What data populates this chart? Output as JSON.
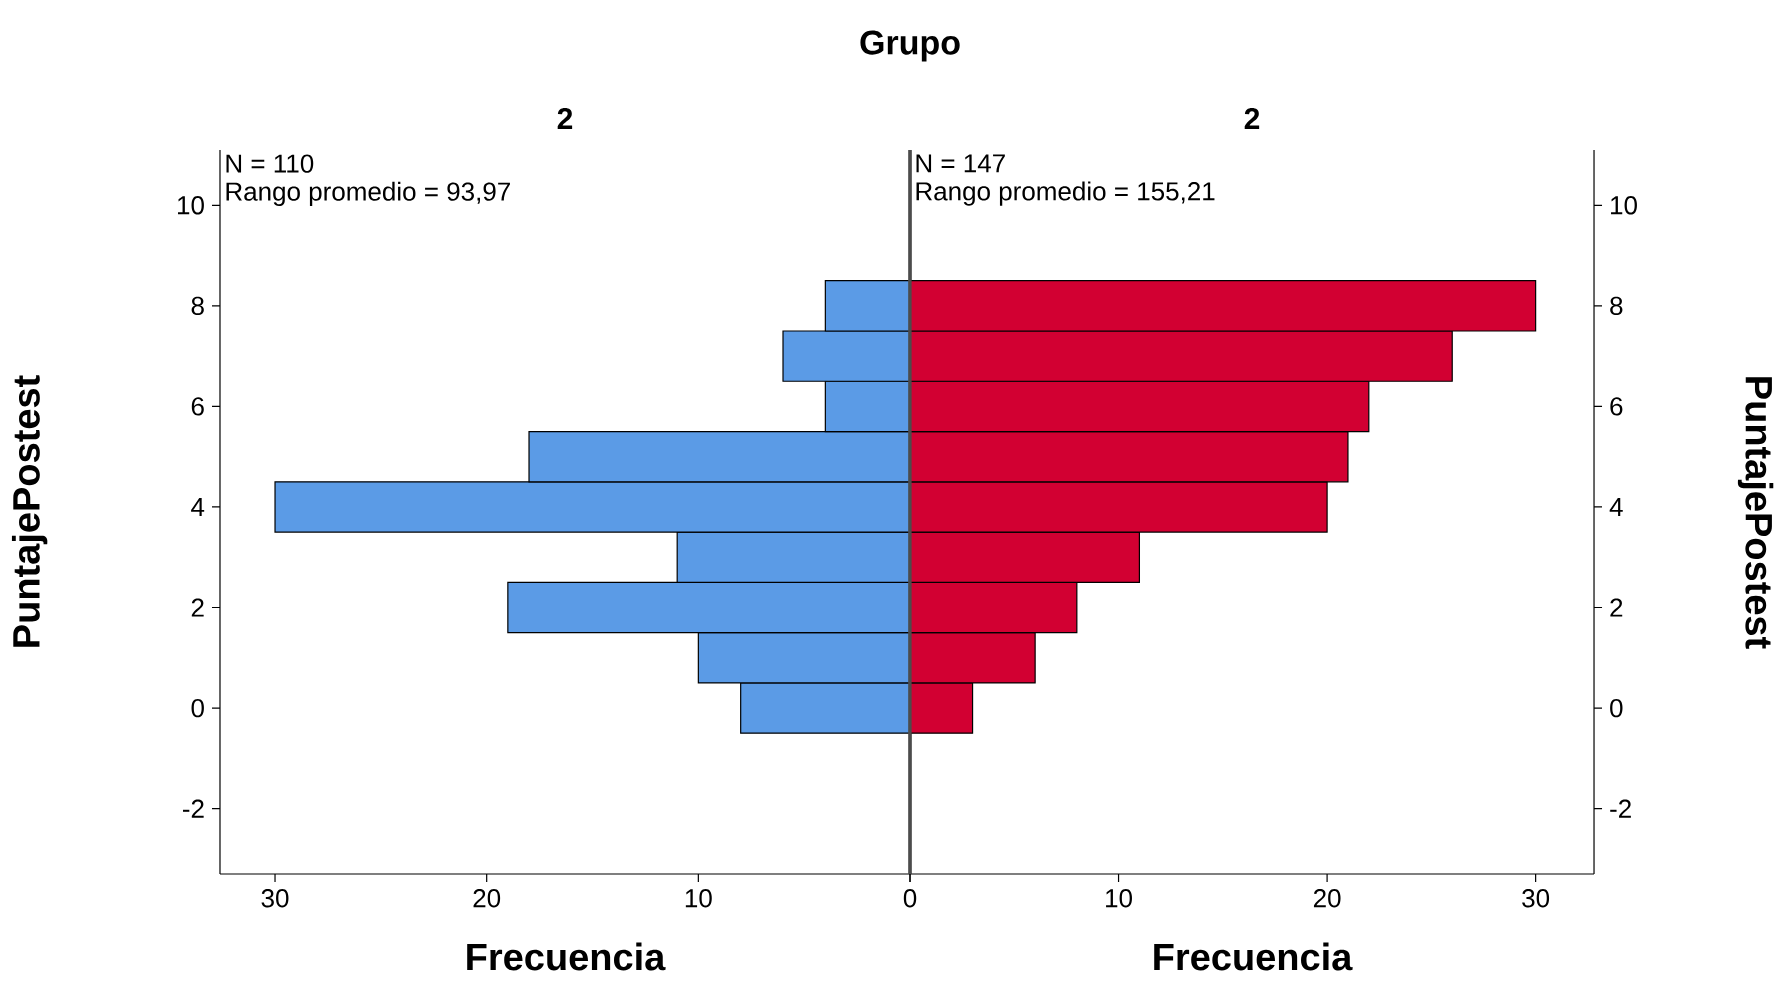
{
  "chart_data": [
    {
      "type": "histogram",
      "orientation": "horizontal",
      "title": "Grupo",
      "subtitle": "2",
      "xlabel": "Frecuencia",
      "ylabel": "PuntajePostest",
      "annotations": [
        "N = 110",
        "Rango promedio = 93,97"
      ],
      "bins": [
        -0.5,
        0.5,
        1.5,
        2.5,
        3.5,
        4.5,
        5.5,
        6.5,
        7.5,
        8.5
      ],
      "values": [
        8,
        10,
        19,
        11,
        30,
        18,
        4,
        6,
        4
      ],
      "color": "#5b9be6",
      "xlim": [
        32.6,
        0
      ],
      "xticks": [
        {
          "value": 0,
          "label": null
        },
        10,
        20,
        30
      ],
      "ylim": [
        -3.3,
        11.1
      ],
      "yticks": [
        -2,
        0,
        2,
        4,
        6,
        8,
        10
      ]
    },
    {
      "type": "histogram",
      "orientation": "horizontal",
      "subtitle": "2",
      "xlabel": "Frecuencia",
      "ylabel": "PuntajePostest",
      "annotations": [
        "N = 147",
        "Rango promedio = 155,21"
      ],
      "bins": [
        -0.5,
        0.5,
        1.5,
        2.5,
        3.5,
        4.5,
        5.5,
        6.5,
        7.5,
        8.5
      ],
      "values": [
        3,
        6,
        8,
        11,
        20,
        21,
        22,
        26,
        30
      ],
      "color": "#d20032",
      "xlim": [
        0,
        32.8
      ],
      "xticks": [
        0,
        10,
        20,
        30
      ],
      "ylim": [
        -3.3,
        11.1
      ],
      "yticks": [
        -2,
        0,
        2,
        4,
        6,
        8,
        10
      ]
    }
  ]
}
